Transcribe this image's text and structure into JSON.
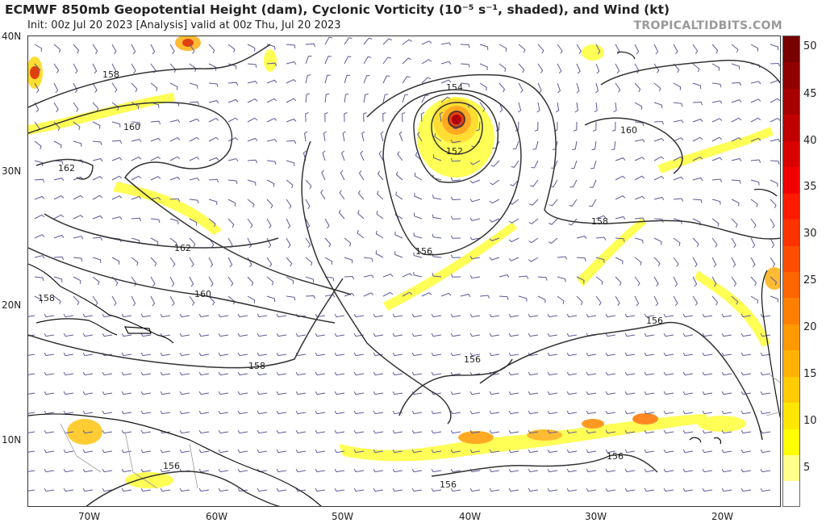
{
  "header": {
    "title": "ECMWF 850mb Geopotential Height (dam), Cyclonic Vorticity (10⁻⁵ s⁻¹, shaded), and Wind (kt)",
    "init": "Init: 00z Jul 20 2023   [Analysis]   valid at 00z Thu, Jul 20 2023",
    "brand": "TROPICALTIDBITS.COM"
  },
  "axes": {
    "lat_labels": [
      "40N",
      "30N",
      "20N",
      "10N"
    ],
    "lon_labels": [
      "70W",
      "60W",
      "50W",
      "40W",
      "30W",
      "20W"
    ]
  },
  "contour_labels": [
    "158",
    "160",
    "162",
    "162",
    "160",
    "154",
    "152",
    "156",
    "160",
    "158",
    "158",
    "158",
    "156",
    "156",
    "156",
    "156",
    "156",
    "156"
  ],
  "colorbar": {
    "labels": [
      "50",
      "45",
      "40",
      "35",
      "30",
      "25",
      "20",
      "15",
      "10",
      "5"
    ],
    "colors": [
      "#fefefe",
      "#ffff8c",
      "#ffff00",
      "#ffe600",
      "#ffcc00",
      "#ffb300",
      "#ff9900",
      "#ff8000",
      "#ff6600",
      "#ff4d00",
      "#ff3300",
      "#ff1a00",
      "#f00000",
      "#d90000",
      "#c00000",
      "#a80000",
      "#900000",
      "#780000"
    ]
  },
  "colors": {
    "contour": "#333333",
    "barb": "#5a5a9a",
    "vort_low": "#ffff55",
    "vort_mid": "#ffcc22",
    "vort_high": "#e04010"
  }
}
